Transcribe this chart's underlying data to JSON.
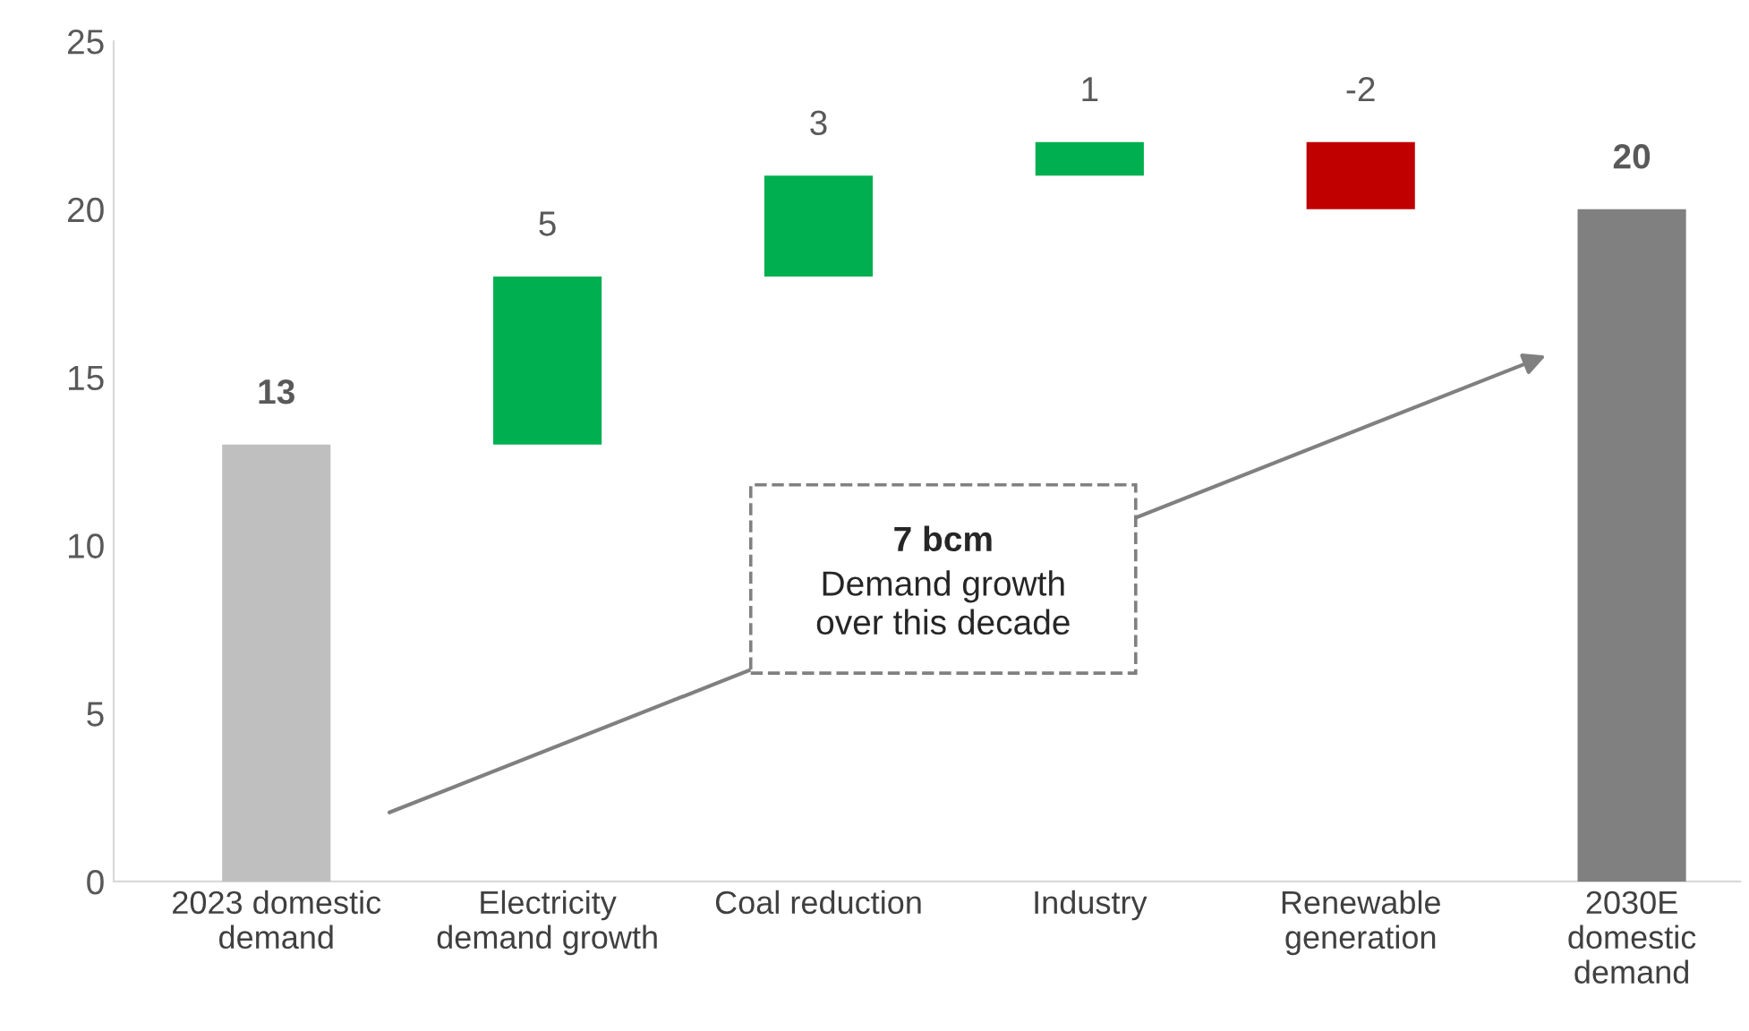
{
  "chart_data": {
    "type": "bar",
    "categories": [
      "2023 domestic\ndemand",
      "Electricity\ndemand growth",
      "Coal reduction",
      "Industry",
      "Renewable\ngeneration",
      "2030E\ndomestic\ndemand"
    ],
    "values": [
      13,
      5,
      3,
      1,
      -2,
      20
    ],
    "base": [
      0,
      13,
      18,
      21,
      22,
      0
    ],
    "colors": [
      "#bfbfbf",
      "#00b050",
      "#00b050",
      "#00b050",
      "#c00000",
      "#808080"
    ],
    "data_labels": true,
    "ylim": [
      0,
      25
    ],
    "yticks": [
      0,
      5,
      10,
      15,
      20,
      25
    ],
    "grid": false,
    "legend": false,
    "annotations": [
      "7 bcm",
      "Demand growth\nover this decade"
    ]
  }
}
